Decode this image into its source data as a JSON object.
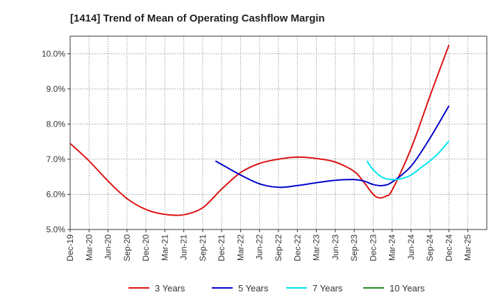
{
  "chart_data": {
    "type": "line",
    "title": "[1414]  Trend of Mean of Operating Cashflow Margin",
    "xlabel": "",
    "ylabel": "",
    "categories": [
      "Dec-19",
      "Mar-20",
      "Jun-20",
      "Sep-20",
      "Dec-20",
      "Mar-21",
      "Jun-21",
      "Sep-21",
      "Dec-21",
      "Mar-22",
      "Jun-22",
      "Sep-22",
      "Dec-22",
      "Mar-23",
      "Jun-23",
      "Sep-23",
      "Dec-23",
      "Mar-24",
      "Jun-24",
      "Sep-24",
      "Dec-24",
      "Mar-25"
    ],
    "ylim": [
      5.0,
      10.5
    ],
    "yticks": [
      5.0,
      6.0,
      7.0,
      8.0,
      9.0,
      10.0
    ],
    "ytick_labels": [
      "5.0%",
      "6.0%",
      "7.0%",
      "8.0%",
      "9.0%",
      "10.0%"
    ],
    "grid": true,
    "legend_position": "bottom",
    "series": [
      {
        "name": "3 Years",
        "color": "#dd1111",
        "x": [
          0,
          1,
          2,
          3,
          4,
          5,
          6,
          7,
          8,
          9,
          10,
          11,
          12,
          13,
          14,
          15,
          15.5,
          16,
          16.33,
          16.67,
          17,
          18,
          19,
          20
        ],
        "values": [
          7.45,
          6.95,
          6.38,
          5.88,
          5.57,
          5.43,
          5.42,
          5.62,
          6.15,
          6.62,
          6.88,
          7.0,
          7.06,
          7.02,
          6.92,
          6.65,
          6.35,
          6.0,
          5.9,
          5.95,
          6.12,
          7.3,
          8.8,
          10.25
        ]
      },
      {
        "name": "5 Years",
        "color": "#0000cc",
        "x": [
          7.67,
          8,
          9,
          10,
          11,
          12,
          13,
          14,
          15,
          15.5,
          16,
          16.5,
          17,
          18,
          19,
          20
        ],
        "values": [
          6.95,
          6.85,
          6.55,
          6.3,
          6.2,
          6.25,
          6.33,
          6.4,
          6.42,
          6.38,
          6.28,
          6.25,
          6.35,
          6.8,
          7.6,
          8.52
        ]
      },
      {
        "name": "7 Years",
        "color": "#00e5ee",
        "x": [
          15.67,
          16,
          16.5,
          17,
          17.5,
          18,
          18.5,
          19,
          19.5,
          20
        ],
        "values": [
          6.95,
          6.7,
          6.48,
          6.42,
          6.45,
          6.55,
          6.75,
          6.95,
          7.2,
          7.52
        ]
      },
      {
        "name": "10 Years",
        "color": "#228822",
        "x": [],
        "values": []
      }
    ]
  }
}
